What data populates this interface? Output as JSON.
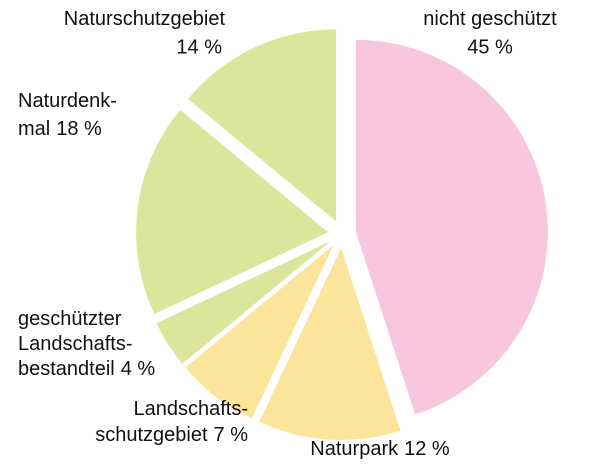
{
  "chart_data": {
    "type": "pie",
    "categories": [
      [
        "nicht geschützt"
      ],
      [
        "Naturpark"
      ],
      [
        "Landschafts-",
        "schutzgebiet"
      ],
      [
        "geschützter",
        "Landschafts-",
        "bestandteil"
      ],
      [
        "Naturdenk-",
        "mal"
      ],
      [
        "Naturschutzgebiet"
      ]
    ],
    "values": [
      45,
      12,
      7,
      4,
      18,
      14
    ],
    "value_labels": [
      "45 %",
      "12 %",
      "7 %",
      "4 %",
      "18 %",
      "14 %"
    ],
    "colors": [
      "#f8c7de",
      "#fde49b",
      "#fde49b",
      "#dbe59c",
      "#dbe59c",
      "#dbe59c"
    ]
  }
}
